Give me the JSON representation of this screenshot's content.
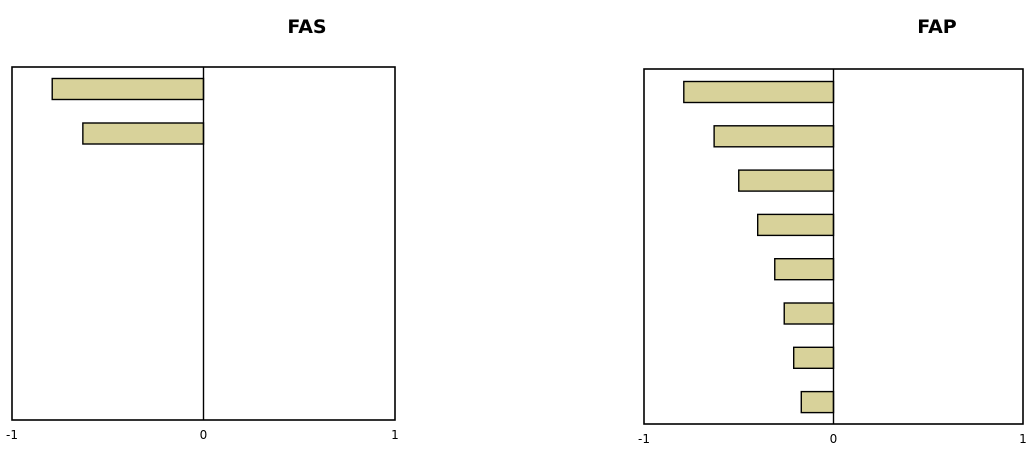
{
  "chart_data": [
    {
      "type": "bar",
      "orientation": "horizontal",
      "title": "FAS",
      "xlim": [
        -1,
        1
      ],
      "xticks": [
        "-1",
        "0",
        "1"
      ],
      "values": [
        -0.79,
        -0.63
      ],
      "bar_color": "#d8d29a",
      "grid": false
    },
    {
      "type": "bar",
      "orientation": "horizontal",
      "title": "FAP",
      "xlim": [
        -1,
        1
      ],
      "xticks": [
        "-1",
        "0",
        "1"
      ],
      "values": [
        -0.79,
        -0.63,
        -0.5,
        -0.4,
        -0.31,
        -0.26,
        -0.21,
        -0.17
      ],
      "bar_color": "#d8d29a",
      "grid": false
    }
  ]
}
